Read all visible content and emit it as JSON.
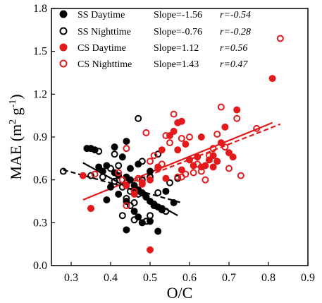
{
  "chart_data": {
    "type": "scatter",
    "xlabel": "O/C",
    "ylabel": {
      "base": "MAE (m",
      "sup1": "2",
      "mid": " g",
      "sup2": "-1",
      "end": ")"
    },
    "xlim": [
      0.25,
      0.9
    ],
    "ylim": [
      0.0,
      1.8
    ],
    "xticks": [
      "0.3",
      "0.4",
      "0.5",
      "0.6",
      "0.7",
      "0.8",
      "0.9"
    ],
    "yticks": [
      "0.0",
      "0.3",
      "0.6",
      "0.9",
      "1.2",
      "1.5",
      "1.8"
    ],
    "legend_position": "top-left",
    "series": [
      {
        "name": "SS Daytime",
        "slope": "Slope=-1.56",
        "r": "r=-0.54",
        "color": "#000000",
        "marker": "filled",
        "trend": {
          "x": [
            0.33,
            0.57
          ],
          "y": [
            0.72,
            0.35
          ],
          "style": "solid"
        },
        "points": [
          [
            0.34,
            0.82
          ],
          [
            0.35,
            0.82
          ],
          [
            0.36,
            0.81
          ],
          [
            0.37,
            0.69
          ],
          [
            0.38,
            0.66
          ],
          [
            0.39,
            0.7
          ],
          [
            0.41,
            0.65
          ],
          [
            0.42,
            0.63
          ],
          [
            0.44,
            0.62
          ],
          [
            0.45,
            0.6
          ],
          [
            0.46,
            0.56
          ],
          [
            0.47,
            0.53
          ],
          [
            0.48,
            0.51
          ],
          [
            0.49,
            0.48
          ],
          [
            0.5,
            0.45
          ],
          [
            0.51,
            0.43
          ],
          [
            0.52,
            0.41
          ],
          [
            0.53,
            0.39
          ],
          [
            0.44,
            0.87
          ],
          [
            0.43,
            0.76
          ],
          [
            0.4,
            0.55
          ],
          [
            0.42,
            0.5
          ],
          [
            0.44,
            0.45
          ],
          [
            0.46,
            0.38
          ],
          [
            0.47,
            0.34
          ],
          [
            0.48,
            0.3
          ],
          [
            0.44,
            0.25
          ],
          [
            0.52,
            0.24
          ],
          [
            0.5,
            0.31
          ],
          [
            0.54,
            0.52
          ],
          [
            0.45,
            0.68
          ],
          [
            0.47,
            0.71
          ],
          [
            0.5,
            0.66
          ],
          [
            0.41,
            0.83
          ],
          [
            0.39,
            0.46
          ],
          [
            0.56,
            0.44
          ]
        ]
      },
      {
        "name": "SS Nighttime",
        "slope": "Slope=-0.76",
        "r": "r=-0.28",
        "color": "#000000",
        "marker": "open",
        "trend": {
          "x": [
            0.28,
            0.58
          ],
          "y": [
            0.67,
            0.44
          ],
          "style": "dashed"
        },
        "points": [
          [
            0.28,
            0.66
          ],
          [
            0.35,
            0.63
          ],
          [
            0.37,
            0.8
          ],
          [
            0.38,
            0.62
          ],
          [
            0.4,
            0.68
          ],
          [
            0.41,
            0.59
          ],
          [
            0.42,
            0.7
          ],
          [
            0.43,
            0.55
          ],
          [
            0.44,
            0.47
          ],
          [
            0.45,
            0.52
          ],
          [
            0.46,
            0.44
          ],
          [
            0.47,
            1.03
          ],
          [
            0.47,
            0.5
          ],
          [
            0.48,
            0.6
          ],
          [
            0.49,
            0.31
          ],
          [
            0.5,
            0.35
          ],
          [
            0.51,
            0.42
          ],
          [
            0.52,
            0.51
          ],
          [
            0.53,
            0.4
          ],
          [
            0.54,
            0.38
          ],
          [
            0.48,
            0.73
          ],
          [
            0.5,
            0.62
          ],
          [
            0.43,
            0.35
          ],
          [
            0.45,
            0.42
          ],
          [
            0.55,
            0.58
          ],
          [
            0.57,
            0.61
          ],
          [
            0.46,
            0.32
          ],
          [
            0.52,
            0.78
          ],
          [
            0.49,
            0.48
          ],
          [
            0.44,
            0.58
          ],
          [
            0.41,
            0.78
          ]
        ]
      },
      {
        "name": "CS Daytime",
        "slope": "Slope=1.12",
        "r": "r=0.56",
        "color": "#e31a1c",
        "marker": "filled",
        "trend": {
          "x": [
            0.33,
            0.81
          ],
          "y": [
            0.46,
            1.0
          ],
          "style": "solid"
        },
        "points": [
          [
            0.35,
            0.4
          ],
          [
            0.5,
            0.11
          ],
          [
            0.81,
            1.31
          ],
          [
            0.53,
            0.81
          ],
          [
            0.55,
            0.91
          ],
          [
            0.57,
            1.0
          ],
          [
            0.58,
            1.01
          ],
          [
            0.56,
            0.94
          ],
          [
            0.6,
            0.74
          ],
          [
            0.61,
            0.7
          ],
          [
            0.62,
            0.76
          ],
          [
            0.63,
            0.69
          ],
          [
            0.64,
            0.7
          ],
          [
            0.65,
            0.74
          ],
          [
            0.66,
            0.77
          ],
          [
            0.67,
            0.73
          ],
          [
            0.68,
            0.86
          ],
          [
            0.69,
            0.97
          ],
          [
            0.7,
            0.79
          ],
          [
            0.71,
            0.76
          ],
          [
            0.72,
            1.09
          ],
          [
            0.52,
            0.68
          ],
          [
            0.54,
            0.61
          ],
          [
            0.58,
            0.67
          ],
          [
            0.5,
            0.6
          ],
          [
            0.48,
            0.58
          ],
          [
            0.46,
            0.5
          ],
          [
            0.44,
            0.56
          ],
          [
            0.33,
            0.63
          ],
          [
            0.57,
            0.81
          ],
          [
            0.63,
            0.9
          ],
          [
            0.66,
            0.69
          ],
          [
            0.59,
            0.85
          ]
        ]
      },
      {
        "name": "CS Nighttime",
        "slope": "Slope=1.43",
        "r": "r=0.47",
        "color": "#e31a1c",
        "marker": "open",
        "trend": {
          "x": [
            0.44,
            0.83
          ],
          "y": [
            0.57,
            0.99
          ],
          "style": "dashed"
        },
        "points": [
          [
            0.83,
            1.59
          ],
          [
            0.77,
            0.96
          ],
          [
            0.72,
            1.03
          ],
          [
            0.73,
            0.63
          ],
          [
            0.7,
            0.68
          ],
          [
            0.68,
            1.11
          ],
          [
            0.67,
            0.92
          ],
          [
            0.66,
            0.82
          ],
          [
            0.65,
            0.77
          ],
          [
            0.63,
            0.66
          ],
          [
            0.62,
            0.71
          ],
          [
            0.61,
            0.65
          ],
          [
            0.6,
            0.9
          ],
          [
            0.59,
            0.64
          ],
          [
            0.58,
            0.62
          ],
          [
            0.57,
            0.62
          ],
          [
            0.56,
            1.06
          ],
          [
            0.55,
            0.86
          ],
          [
            0.54,
            0.91
          ],
          [
            0.53,
            0.71
          ],
          [
            0.52,
            0.69
          ],
          [
            0.51,
            0.77
          ],
          [
            0.5,
            0.73
          ],
          [
            0.49,
            0.93
          ],
          [
            0.48,
            0.57
          ],
          [
            0.47,
            0.61
          ],
          [
            0.46,
            0.52
          ],
          [
            0.44,
            0.82
          ],
          [
            0.43,
            0.6
          ],
          [
            0.42,
            0.65
          ],
          [
            0.35,
            0.4
          ],
          [
            0.36,
            0.64
          ],
          [
            0.44,
            0.42
          ],
          [
            0.69,
            0.83
          ],
          [
            0.64,
            0.6
          ],
          [
            0.58,
            0.89
          ]
        ]
      }
    ]
  }
}
